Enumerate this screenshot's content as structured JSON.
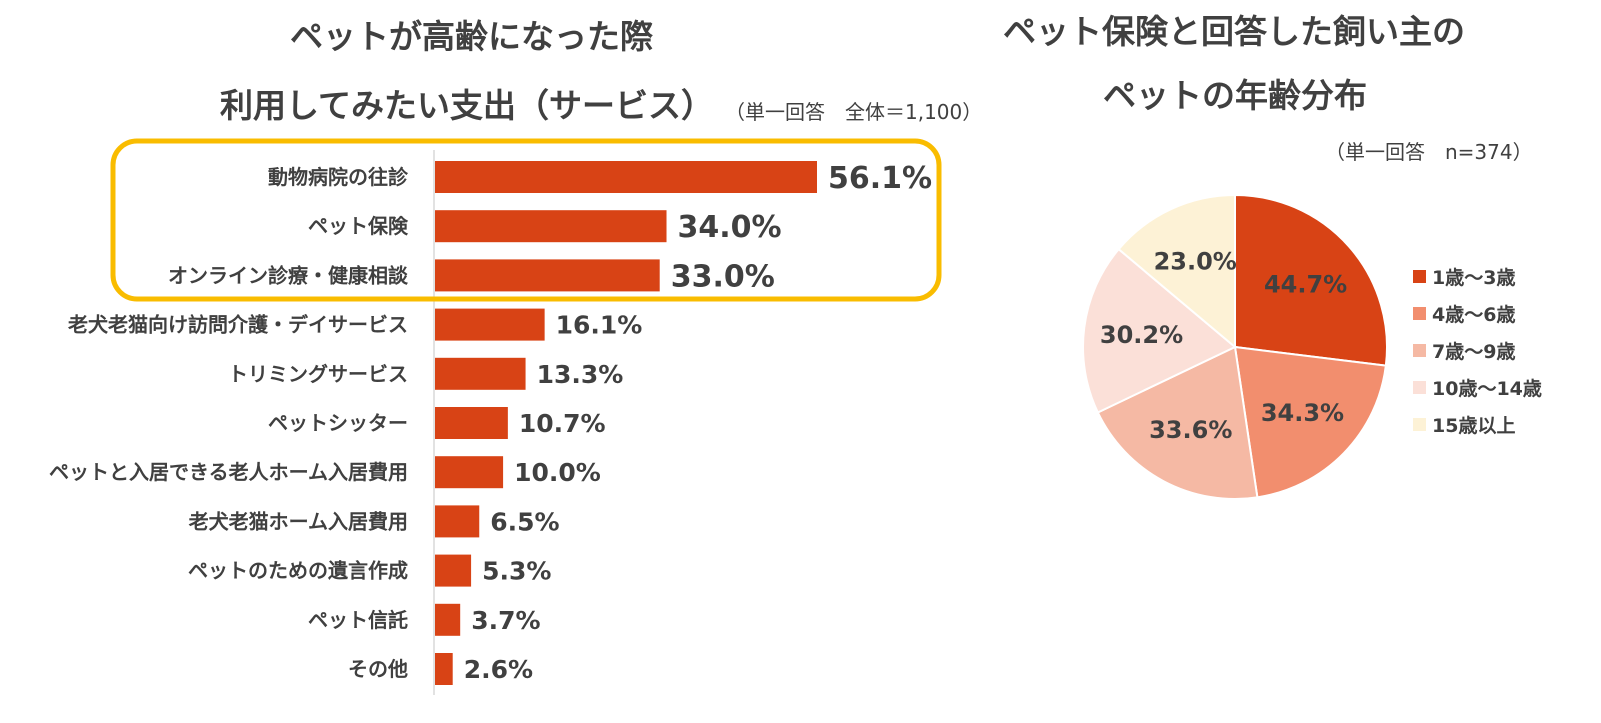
{
  "bar_chart": {
    "title_line1": "ペットが高齢になった際",
    "title_line2": "利用してみたい支出（サービス）",
    "note": "（単一回答　全体＝1,100）"
  },
  "pie_chart": {
    "title_line1": "ペット保険と回答した飼い主の",
    "title_line2": "ペットの年齢分布",
    "note": "（単一回答　n=374）"
  },
  "colors": {
    "bar": "#d84315",
    "highlight_border": "#f9bc00",
    "axis": "#d9d9d9",
    "pie": [
      "#d84315",
      "#f28e6e",
      "#f5b9a4",
      "#fbe0d8",
      "#fdf2d6"
    ]
  },
  "chart_data": [
    {
      "type": "bar",
      "orientation": "horizontal",
      "title": "ペットが高齢になった際 利用してみたい支出（サービス）",
      "categories": [
        "動物病院の往診",
        "ペット保険",
        "オンライン診療・健康相談",
        "老犬老猫向け訪問介護・デイサービス",
        "トリミングサービス",
        "ペットシッター",
        "ペットと入居できる老人ホーム入居費用",
        "老犬老猫ホーム入居費用",
        "ペットのための遺言作成",
        "ペット信託",
        "その他"
      ],
      "values": [
        56.1,
        34.0,
        33.0,
        16.1,
        13.3,
        10.7,
        10.0,
        6.5,
        5.3,
        3.7,
        2.6
      ],
      "value_labels": [
        "56.1%",
        "34.0%",
        "33.0%",
        "16.1%",
        "13.3%",
        "10.7%",
        "10.0%",
        "6.5%",
        "5.3%",
        "3.7%",
        "2.6%"
      ],
      "highlighted_count": 3,
      "grid": false
    },
    {
      "type": "pie",
      "title": "ペット保険と回答した飼い主の ペットの年齢分布",
      "categories": [
        "1歳～3歳",
        "4歳～6歳",
        "7歳～9歳",
        "10歳～14歳",
        "15歳以上"
      ],
      "values": [
        44.7,
        34.3,
        33.6,
        30.2,
        23.0
      ],
      "value_labels": [
        "44.7%",
        "34.3%",
        "33.6%",
        "30.2%",
        "23.0%"
      ],
      "legend_position": "right"
    }
  ]
}
